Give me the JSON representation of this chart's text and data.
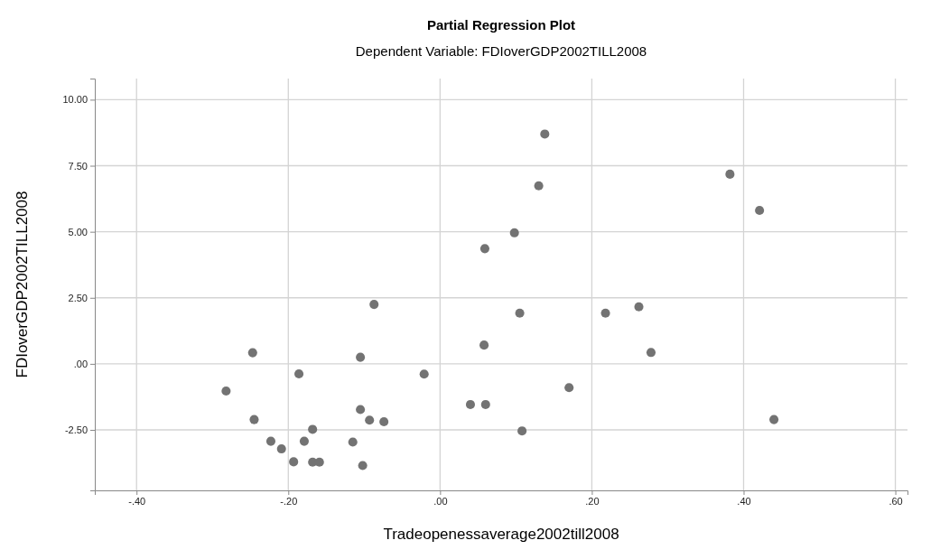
{
  "chart_data": {
    "type": "scatter",
    "title": "Partial Regression Plot",
    "subtitle": "Dependent Variable: FDIoverGDP2002TILL2008",
    "xlabel": "Tradeopenessaverage2002till2008",
    "ylabel": "FDIoverGDP2002TILL2008",
    "x": [
      -0.087,
      -0.247,
      -0.105,
      -0.186,
      -0.021,
      -0.282,
      -0.245,
      -0.105,
      -0.093,
      -0.074,
      -0.168,
      -0.223,
      -0.179,
      -0.209,
      -0.115,
      -0.193,
      -0.168,
      -0.159,
      -0.102,
      0.138,
      0.13,
      0.098,
      0.059,
      0.382,
      0.421,
      0.105,
      0.058,
      0.218,
      0.262,
      0.278,
      0.17,
      0.04,
      0.06,
      0.108,
      0.44
    ],
    "values": [
      2.25,
      0.42,
      0.25,
      -0.38,
      -0.39,
      -1.03,
      -2.11,
      -1.73,
      -2.13,
      -2.19,
      -2.48,
      -2.93,
      -2.93,
      -3.22,
      -2.96,
      -3.71,
      -3.72,
      -3.72,
      -3.85,
      8.7,
      6.74,
      4.96,
      4.36,
      7.18,
      5.81,
      1.92,
      0.71,
      1.92,
      2.16,
      0.43,
      -0.9,
      -1.54,
      -1.54,
      -2.54,
      -2.11
    ],
    "color": "#737373",
    "marker": "circle",
    "grid": true,
    "xlim": [
      -0.455,
      0.616
    ],
    "ylim": [
      -4.79,
      10.8
    ],
    "xticks": [
      {
        "value": -0.4,
        "label": "-.40"
      },
      {
        "value": -0.2,
        "label": "-.20"
      },
      {
        "value": 0,
        "label": ".00"
      },
      {
        "value": 0.2,
        "label": ".20"
      },
      {
        "value": 0.4,
        "label": ".40"
      },
      {
        "value": 0.6,
        "label": ".60"
      }
    ],
    "yticks": [
      {
        "value": -2.5,
        "label": "-2.50"
      },
      {
        "value": 0,
        "label": ".00"
      },
      {
        "value": 2.5,
        "label": "2.50"
      },
      {
        "value": 5,
        "label": "5.00"
      },
      {
        "value": 7.5,
        "label": "7.50"
      },
      {
        "value": 10,
        "label": "10.00"
      }
    ]
  }
}
